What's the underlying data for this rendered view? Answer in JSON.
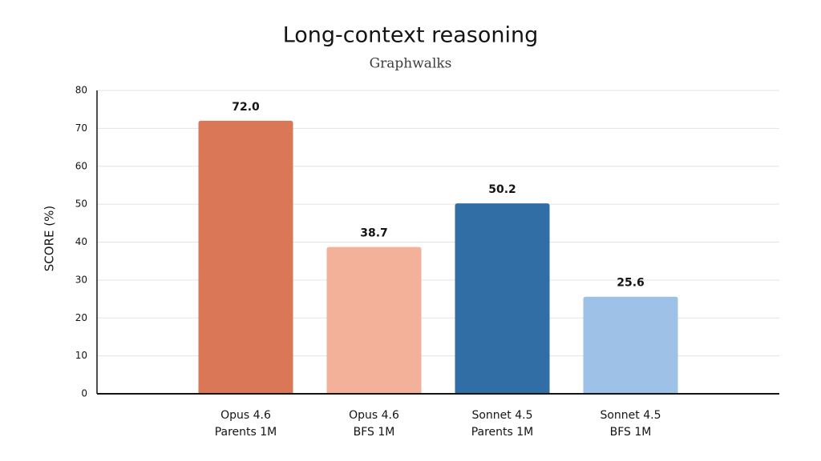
{
  "chart_data": {
    "type": "bar",
    "title": "Long-context reasoning",
    "subtitle": "Graphwalks",
    "y_label": "SCORE (%)",
    "categories": [
      [
        "Opus 4.6",
        "Parents 1M"
      ],
      [
        "Opus 4.6",
        "BFS 1M"
      ],
      [
        "Sonnet 4.5",
        "Parents 1M"
      ],
      [
        "Sonnet 4.5",
        "BFS 1M"
      ]
    ],
    "values": [
      72.0,
      38.7,
      50.2,
      25.6
    ],
    "value_labels": [
      "72.0",
      "38.7",
      "50.2",
      "25.6"
    ],
    "colors": [
      "#d97757",
      "#f3b19a",
      "#326ea6",
      "#9dc1e7"
    ],
    "ylim": [
      0,
      80
    ],
    "yticks": [
      0,
      10,
      20,
      30,
      40,
      50,
      60,
      70,
      80
    ],
    "grid": true
  }
}
